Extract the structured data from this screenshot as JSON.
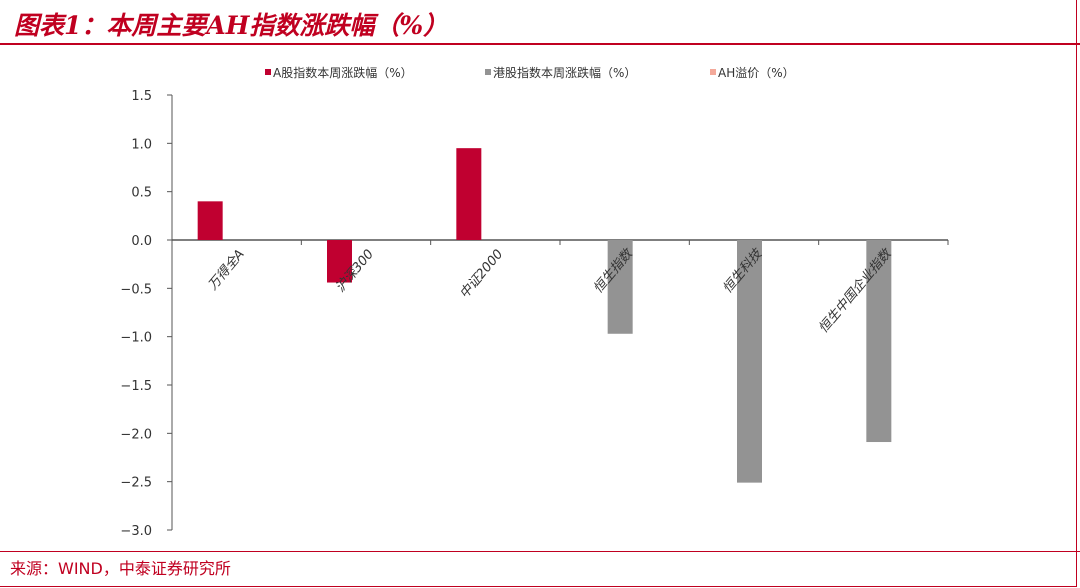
{
  "title": "图表1：本周主要AH指数涨跌幅（%）",
  "source": "来源：WIND，中泰证券研究所",
  "chart_data": {
    "type": "bar",
    "categories": [
      "万得全A",
      "沪深300",
      "中证2000",
      "恒生指数",
      "恒生科技",
      "恒生中国企业指数"
    ],
    "series": [
      {
        "name": "A股指数本周涨跌幅（%）",
        "color": "#c00030",
        "values": [
          0.4,
          -0.44,
          0.95,
          null,
          null,
          null
        ]
      },
      {
        "name": "港股指数本周涨跌幅（%）",
        "color": "#939393",
        "values": [
          null,
          null,
          null,
          -0.97,
          -2.51,
          -2.09
        ]
      },
      {
        "name": "AH溢价（%）",
        "color": "#f4a99a",
        "values": [
          null,
          null,
          null,
          null,
          null,
          null
        ]
      }
    ],
    "yticks": [
      "1.5",
      "1.0",
      "0.5",
      "0.0",
      "-0.5",
      "-1.0",
      "-1.5",
      "-2.0",
      "-2.5",
      "-3.0"
    ],
    "ylim": [
      -3.0,
      1.5
    ],
    "legend": "top",
    "grid": false
  }
}
